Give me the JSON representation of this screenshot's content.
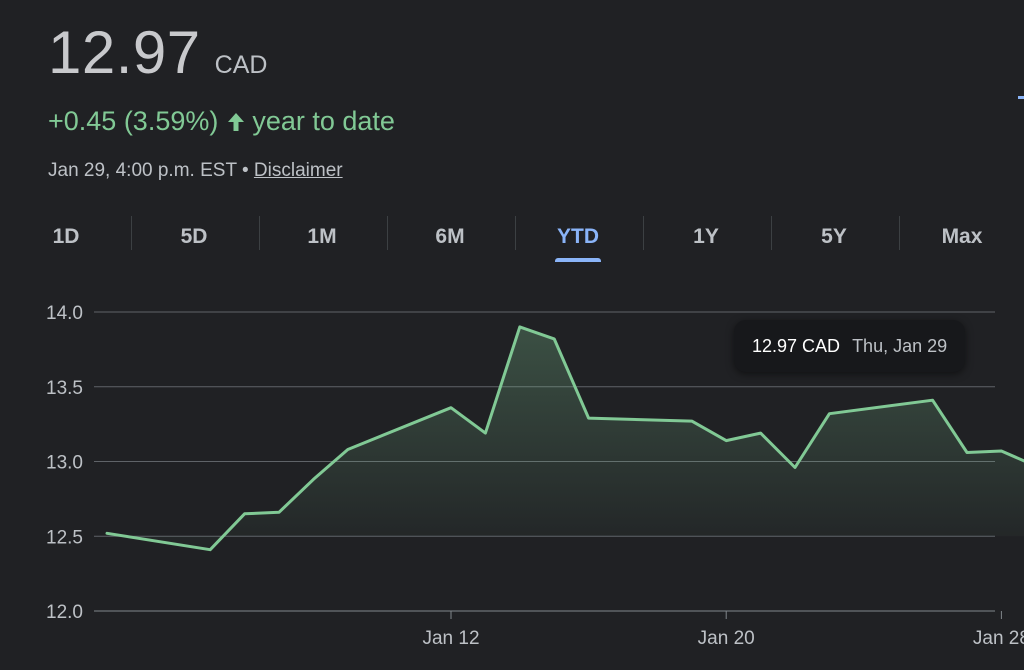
{
  "quote": {
    "price": "12.97",
    "currency": "CAD",
    "change": "+0.45 (3.59%)",
    "period_label": "year to date",
    "timestamp": "Jan 29, 4:00 p.m. EST",
    "separator": "•",
    "disclaimer": "Disclaimer"
  },
  "tabs": [
    {
      "label": "1D",
      "active": false
    },
    {
      "label": "5D",
      "active": false
    },
    {
      "label": "1M",
      "active": false
    },
    {
      "label": "6M",
      "active": false
    },
    {
      "label": "YTD",
      "active": true
    },
    {
      "label": "1Y",
      "active": false
    },
    {
      "label": "5Y",
      "active": false
    },
    {
      "label": "Max",
      "active": false
    }
  ],
  "tooltip": {
    "price": "12.97 CAD",
    "date": "Thu, Jan 29"
  },
  "colors": {
    "background": "#202124",
    "line": "#81c995",
    "accent": "#8ab4f8",
    "grid": "#5f6368",
    "text": "#bdc1c6"
  },
  "chart_data": {
    "type": "area",
    "title": "",
    "xlabel": "",
    "ylabel": "",
    "x": [
      "2026-01-02",
      "2026-01-05",
      "2026-01-06",
      "2026-01-07",
      "2026-01-08",
      "2026-01-09",
      "2026-01-12",
      "2026-01-13",
      "2026-01-14",
      "2026-01-15",
      "2026-01-16",
      "2026-01-19",
      "2026-01-20",
      "2026-01-21",
      "2026-01-22",
      "2026-01-23",
      "2026-01-26",
      "2026-01-27",
      "2026-01-28",
      "2026-01-29"
    ],
    "values": [
      12.52,
      12.41,
      12.65,
      12.66,
      12.88,
      13.08,
      13.36,
      13.19,
      13.9,
      13.82,
      13.29,
      13.27,
      13.14,
      13.19,
      12.96,
      13.32,
      13.41,
      13.06,
      13.07,
      12.97
    ],
    "ylim": [
      12.0,
      14.0
    ],
    "yticks": [
      "12.0",
      "12.5",
      "13.0",
      "13.5",
      "14.0"
    ],
    "xticks": [
      {
        "date": "2026-01-12",
        "label": "Jan 12"
      },
      {
        "date": "2026-01-20",
        "label": "Jan 20"
      },
      {
        "date": "2026-01-28",
        "label": "Jan 28"
      }
    ],
    "highlight": {
      "date": "2026-01-29",
      "value": 12.97
    },
    "grid": true
  }
}
